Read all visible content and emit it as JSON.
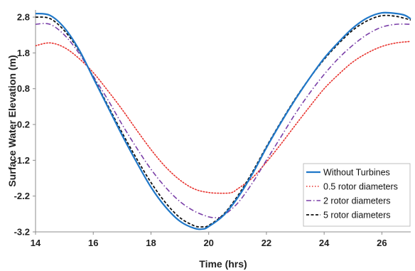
{
  "chart_data": {
    "type": "line",
    "title": "",
    "xlabel": "Time (hrs)",
    "ylabel": "Surface Water Elevation (m)",
    "xlim": [
      14,
      27
    ],
    "ylim": [
      -3.2,
      3.0
    ],
    "xticks": [
      14,
      16,
      18,
      20,
      22,
      24,
      26
    ],
    "xtick_labels": [
      "14",
      "16",
      "18",
      "20",
      "22",
      "24",
      "26"
    ],
    "yticks": [
      2.8,
      1.8,
      0.8,
      -0.2,
      -1.2,
      -2.2,
      -3.2
    ],
    "ytick_labels": [
      "2.8",
      "1.8",
      "0.8",
      "-0.2",
      "-1.2",
      "-2.2",
      "-3.2"
    ],
    "grid": false,
    "legend_position": "bottom-right",
    "series": [
      {
        "name": "Without Turbines",
        "color": "#1f77c8",
        "style": "solid",
        "x": [
          14.0,
          14.5,
          15.0,
          15.5,
          16.0,
          16.5,
          17.0,
          17.5,
          18.0,
          18.5,
          19.0,
          19.5,
          19.8,
          20.0,
          20.5,
          21.0,
          21.5,
          22.0,
          22.5,
          23.0,
          23.5,
          24.0,
          24.5,
          25.0,
          25.5,
          26.0,
          26.5,
          26.8,
          27.0
        ],
        "y": [
          2.9,
          2.85,
          2.5,
          1.9,
          1.1,
          0.3,
          -0.5,
          -1.25,
          -1.95,
          -2.5,
          -2.9,
          -3.1,
          -3.12,
          -3.05,
          -2.75,
          -2.25,
          -1.6,
          -0.85,
          -0.15,
          0.5,
          1.1,
          1.65,
          2.1,
          2.5,
          2.78,
          2.92,
          2.9,
          2.85,
          2.75
        ]
      },
      {
        "name": "0.5 rotor diameters",
        "color": "#e8322d",
        "style": "dotted",
        "x": [
          14.0,
          14.5,
          15.0,
          15.5,
          16.0,
          16.5,
          17.0,
          17.5,
          18.0,
          18.5,
          19.0,
          19.5,
          20.0,
          20.5,
          20.8,
          21.0,
          21.5,
          22.0,
          22.5,
          23.0,
          23.5,
          24.0,
          24.5,
          25.0,
          25.5,
          26.0,
          26.5,
          27.0
        ],
        "y": [
          2.0,
          2.08,
          1.95,
          1.65,
          1.25,
          0.75,
          0.22,
          -0.35,
          -0.9,
          -1.38,
          -1.75,
          -2.0,
          -2.1,
          -2.12,
          -2.1,
          -2.0,
          -1.7,
          -1.25,
          -0.75,
          -0.22,
          0.3,
          0.8,
          1.2,
          1.55,
          1.8,
          1.98,
          2.08,
          2.12
        ]
      },
      {
        "name": "2 rotor diameters",
        "color": "#7a3fa8",
        "style": "dashdot",
        "x": [
          14.0,
          14.5,
          15.0,
          15.5,
          16.0,
          16.5,
          17.0,
          17.5,
          18.0,
          18.5,
          19.0,
          19.5,
          20.0,
          20.3,
          20.5,
          21.0,
          21.5,
          22.0,
          22.5,
          23.0,
          23.5,
          24.0,
          24.5,
          25.0,
          25.5,
          26.0,
          26.5,
          27.0
        ],
        "y": [
          2.6,
          2.6,
          2.3,
          1.8,
          1.15,
          0.5,
          -0.2,
          -0.85,
          -1.45,
          -1.95,
          -2.35,
          -2.62,
          -2.78,
          -2.8,
          -2.75,
          -2.4,
          -1.85,
          -1.2,
          -0.55,
          0.1,
          0.68,
          1.2,
          1.65,
          2.02,
          2.32,
          2.52,
          2.6,
          2.6
        ]
      },
      {
        "name": "5 rotor diameters",
        "color": "#111111",
        "style": "dashed",
        "x": [
          14.0,
          14.5,
          15.0,
          15.5,
          16.0,
          16.5,
          17.0,
          17.5,
          18.0,
          18.5,
          19.0,
          19.5,
          19.8,
          20.0,
          20.5,
          21.0,
          21.5,
          22.0,
          22.5,
          23.0,
          23.5,
          24.0,
          24.5,
          25.0,
          25.5,
          26.0,
          26.5,
          27.0
        ],
        "y": [
          2.8,
          2.76,
          2.42,
          1.87,
          1.12,
          0.34,
          -0.43,
          -1.15,
          -1.82,
          -2.38,
          -2.8,
          -3.03,
          -3.06,
          -3.02,
          -2.72,
          -2.2,
          -1.55,
          -0.82,
          -0.13,
          0.52,
          1.1,
          1.62,
          2.06,
          2.44,
          2.7,
          2.84,
          2.82,
          2.72
        ]
      }
    ]
  }
}
